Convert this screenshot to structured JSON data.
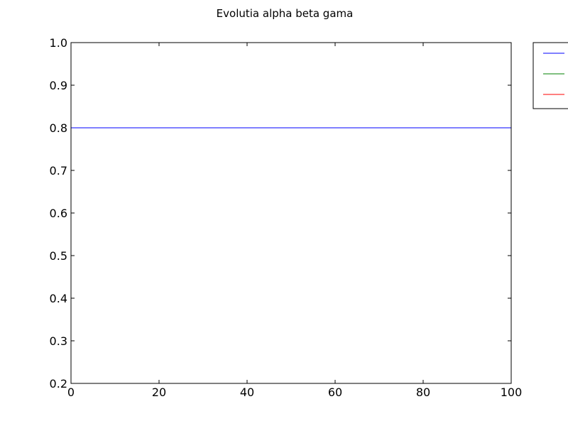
{
  "chart_data": {
    "type": "line",
    "title": "Evolutia alpha beta gama",
    "xlabel": "",
    "ylabel": "",
    "xlim": [
      0,
      100
    ],
    "ylim": [
      0.2,
      1.0
    ],
    "xticks": [
      0,
      20,
      40,
      60,
      80,
      100
    ],
    "yticks": [
      0.2,
      0.3,
      0.4,
      0.5,
      0.6,
      0.7,
      0.8,
      0.9,
      1.0
    ],
    "xtick_labels": [
      "0",
      "20",
      "40",
      "60",
      "80",
      "100"
    ],
    "ytick_labels": [
      "0.2",
      "0.3",
      "0.4",
      "0.5",
      "0.6",
      "0.7",
      "0.8",
      "0.9",
      "1.0"
    ],
    "grid": false,
    "legend": "top-right, outside plot",
    "series": [
      {
        "color": "#0000ff",
        "x": [
          0,
          100
        ],
        "y": [
          0.8,
          0.8
        ]
      },
      {
        "color": "#008000",
        "x": [],
        "y": []
      },
      {
        "color": "#ff0000",
        "x": [],
        "y": []
      }
    ]
  }
}
